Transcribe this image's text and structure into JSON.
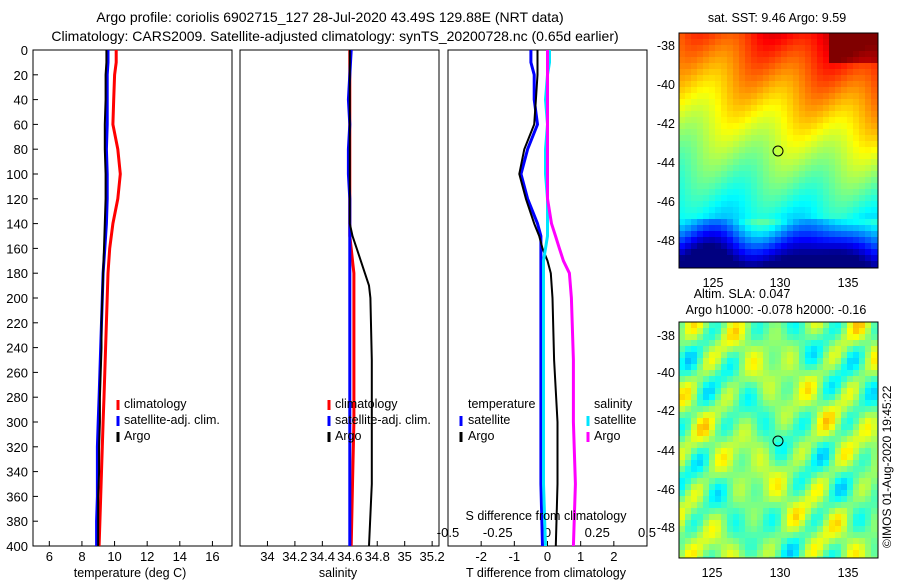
{
  "title": {
    "line1": "Argo profile: coriolis 6902715_127 28-Jul-2020 43.49S 129.88E (NRT data)",
    "line2": "Climatology: CARS2009. Satellite-adjusted climatology: synTS_20200728.nc (0.65d earlier)"
  },
  "colors": {
    "climatology": "#ff0000",
    "satellite": "#0000ff",
    "argo": "#000000",
    "sat_salinity": "#00e5ff",
    "clim_salinity": "#ff00ff"
  },
  "chart_data": [
    {
      "type": "line",
      "name": "temperature",
      "xlabel": "temperature (deg C)",
      "ylabel": "depth",
      "xlim": [
        5,
        17.2
      ],
      "ylim": [
        400,
        0
      ],
      "xticks": [
        6,
        8,
        10,
        12,
        14,
        16
      ],
      "yticks": [
        0,
        20,
        40,
        60,
        80,
        100,
        120,
        140,
        160,
        180,
        200,
        220,
        240,
        260,
        280,
        300,
        320,
        340,
        360,
        380,
        400
      ],
      "legend": [
        "climatology",
        "satellite-adj. clim.",
        "Argo"
      ],
      "depth": [
        0,
        10,
        20,
        40,
        60,
        80,
        100,
        120,
        140,
        160,
        180,
        200,
        220,
        240,
        260,
        280,
        300,
        320,
        340,
        360,
        380,
        400
      ],
      "series": [
        {
          "name": "climatology",
          "values": [
            10.1,
            10.1,
            10.0,
            9.95,
            9.9,
            10.2,
            10.35,
            10.2,
            9.9,
            9.7,
            9.6,
            9.55,
            9.5,
            9.45,
            9.4,
            9.35,
            9.3,
            9.25,
            9.2,
            9.15,
            9.1,
            9.05
          ]
        },
        {
          "name": "satellite-adj. clim.",
          "values": [
            9.6,
            9.6,
            9.55,
            9.55,
            9.55,
            9.5,
            9.55,
            9.55,
            9.5,
            9.4,
            9.3,
            9.25,
            9.2,
            9.15,
            9.1,
            9.05,
            9.0,
            8.95,
            8.95,
            8.95,
            8.9,
            8.9
          ]
        },
        {
          "name": "Argo",
          "values": [
            9.5,
            9.5,
            9.45,
            9.45,
            9.4,
            9.4,
            9.45,
            9.45,
            9.4,
            9.35,
            9.3,
            9.25,
            9.2,
            9.2,
            9.15,
            9.1,
            9.1,
            9.05,
            9.05,
            9.0,
            9.0,
            9.0
          ]
        }
      ]
    },
    {
      "type": "line",
      "name": "salinity",
      "xlabel": "salinity",
      "xlim": [
        33.8,
        35.25
      ],
      "ylim": [
        400,
        0
      ],
      "xticks": [
        34,
        34.2,
        34.4,
        34.6,
        34.8,
        35,
        35.2
      ],
      "xticklabels": [
        "34",
        "34.2",
        "34.4",
        "34.6",
        "34.8",
        "35",
        "35.2"
      ],
      "legend": [
        "climatology",
        "satellite-adj. clim.",
        "Argo"
      ],
      "depth": [
        0,
        20,
        40,
        60,
        80,
        100,
        120,
        140,
        150,
        160,
        170,
        180,
        190,
        200,
        250,
        300,
        350,
        400
      ],
      "series": [
        {
          "name": "climatology",
          "values": [
            34.6,
            34.6,
            34.6,
            34.6,
            34.6,
            34.6,
            34.6,
            34.6,
            34.6,
            34.61,
            34.62,
            34.63,
            34.63,
            34.63,
            34.63,
            34.63,
            34.62,
            34.61
          ]
        },
        {
          "name": "satellite-adj. clim.",
          "values": [
            34.61,
            34.6,
            34.59,
            34.6,
            34.59,
            34.59,
            34.6,
            34.6,
            34.6,
            34.6,
            34.6,
            34.6,
            34.6,
            34.6,
            34.6,
            34.6,
            34.6,
            34.6
          ]
        },
        {
          "name": "Argo",
          "values": [
            34.6,
            34.6,
            34.6,
            34.6,
            34.6,
            34.6,
            34.6,
            34.6,
            34.62,
            34.65,
            34.68,
            34.71,
            34.74,
            34.75,
            34.76,
            34.76,
            34.76,
            34.74
          ]
        }
      ]
    },
    {
      "type": "line",
      "name": "difference from climatology",
      "xlabel": "T difference from climatology",
      "xlabel2": "S difference from climatology",
      "xlim": [
        -3,
        3
      ],
      "ylim": [
        400,
        0
      ],
      "xticks": [
        -2,
        -1,
        0,
        1,
        2
      ],
      "xticks2": [
        -0.5,
        -0.25,
        0,
        0.25,
        0.5
      ],
      "legend": {
        "temperature_title": "temperature",
        "salinity_title": "salinity",
        "satellite": "satellite",
        "argo": "Argo"
      },
      "depth": [
        0,
        10,
        20,
        40,
        60,
        80,
        100,
        120,
        140,
        150,
        160,
        170,
        180,
        200,
        250,
        300,
        350,
        400
      ],
      "series": [
        {
          "name": "T satellite",
          "values": [
            -0.5,
            -0.5,
            -0.4,
            -0.4,
            -0.3,
            -0.6,
            -0.8,
            -0.6,
            -0.3,
            -0.2,
            -0.2,
            -0.2,
            -0.2,
            -0.2,
            -0.2,
            -0.2,
            -0.2,
            -0.15
          ]
        },
        {
          "name": "T Argo",
          "values": [
            -0.3,
            -0.3,
            -0.3,
            -0.35,
            -0.4,
            -0.7,
            -0.85,
            -0.65,
            -0.4,
            -0.25,
            -0.15,
            0.0,
            0.1,
            0.15,
            0.2,
            0.3,
            0.3,
            0.25
          ]
        },
        {
          "name": "S satellite",
          "values": [
            0.01,
            0.01,
            0.0,
            -0.01,
            0.0,
            -0.01,
            -0.01,
            0.0,
            0.0,
            0.0,
            -0.01,
            -0.02,
            -0.02,
            -0.02,
            -0.02,
            -0.02,
            -0.02,
            -0.01
          ]
        },
        {
          "name": "S Argo",
          "values": [
            0.0,
            0.0,
            0.0,
            0.0,
            0.0,
            0.0,
            0.0,
            0.0,
            0.02,
            0.04,
            0.06,
            0.08,
            0.11,
            0.12,
            0.13,
            0.13,
            0.14,
            0.13
          ]
        }
      ]
    }
  ],
  "sst_map": {
    "title": "sat. SST: 9.46 Argo: 9.59",
    "lat_ticks": [
      "-38",
      "-40",
      "-42",
      "-44",
      "-46",
      "-48"
    ],
    "lon_ticks": [
      "125",
      "130",
      "135"
    ],
    "marker_lon": 129.88,
    "marker_lat": -43.49
  },
  "sla_map": {
    "title1": "Altim. SLA: 0.047",
    "title2": "Argo h1000: -0.078 h2000: -0.16",
    "lat_ticks": [
      "-38",
      "-40",
      "-42",
      "-44",
      "-46",
      "-48"
    ],
    "lon_ticks": [
      "125",
      "130",
      "135"
    ],
    "marker_lon": 129.88,
    "marker_lat": -43.49
  },
  "credit": "©IMOS 01-Aug-2020 19:45:22"
}
